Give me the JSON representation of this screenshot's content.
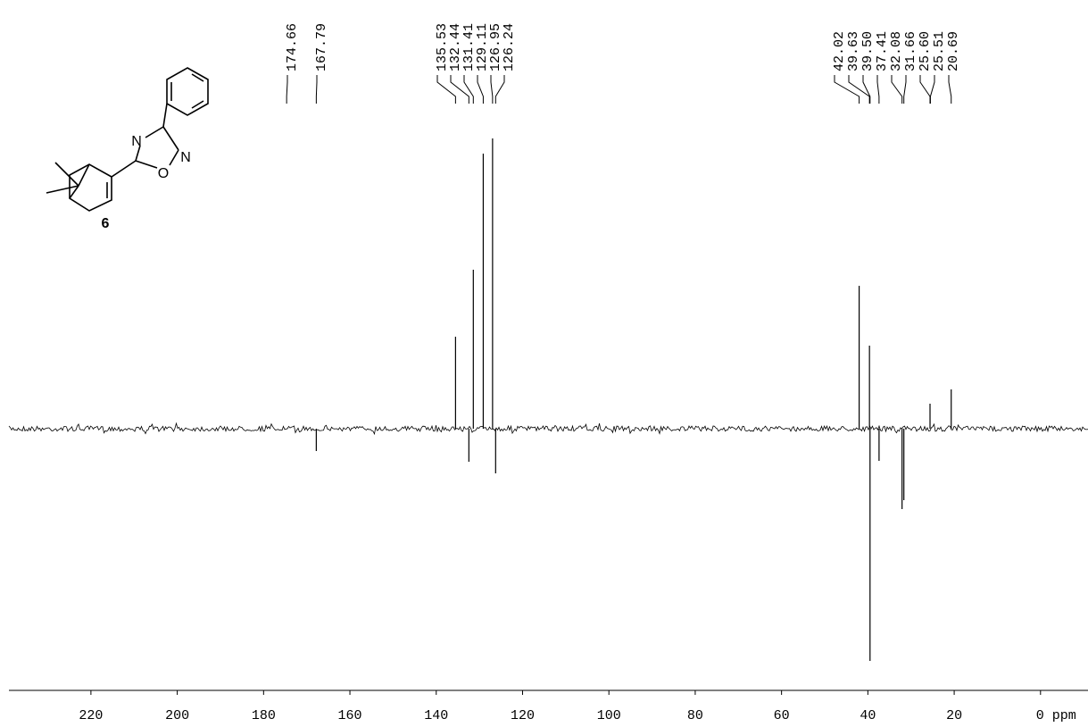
{
  "chart_data": {
    "type": "spectrum",
    "x": [
      174.66,
      167.79,
      135.53,
      132.44,
      131.41,
      129.11,
      126.95,
      126.24,
      42.02,
      39.63,
      39.5,
      37.41,
      32.08,
      31.66,
      25.6,
      25.51,
      20.69
    ],
    "x_labels": [
      "174.66",
      "167.79",
      "135.53",
      "132.44",
      "131.41",
      "129.11",
      "126.95",
      "126.24",
      "42.02",
      "39.63",
      "39.50",
      "37.41",
      "32.08",
      "31.66",
      "25.60",
      "25.51",
      "20.69"
    ],
    "values": [
      0,
      -25,
      103,
      -37,
      178,
      308,
      325,
      -50,
      160,
      93,
      -260,
      -36,
      -90,
      -80,
      28,
      0,
      44
    ],
    "color": "#000000",
    "xlim": [
      239,
      -11
    ],
    "xticks": [
      220,
      200,
      180,
      160,
      140,
      120,
      100,
      80,
      60,
      40,
      20,
      {
        "value": 0,
        "label": "0 ppm"
      }
    ],
    "ylim": [
      -290,
      340
    ],
    "annotations": {
      "compound": "6",
      "atoms": [
        "N",
        "O",
        "N"
      ]
    }
  }
}
